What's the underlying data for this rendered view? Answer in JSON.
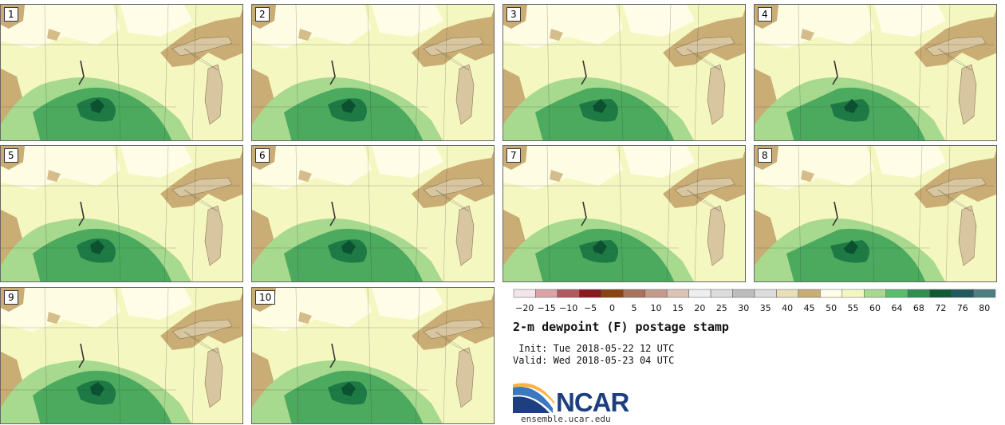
{
  "panels": [
    {
      "label": "1"
    },
    {
      "label": "2"
    },
    {
      "label": "3"
    },
    {
      "label": "4"
    },
    {
      "label": "5"
    },
    {
      "label": "6"
    },
    {
      "label": "7"
    },
    {
      "label": "8"
    },
    {
      "label": "9"
    },
    {
      "label": "10"
    }
  ],
  "colorbar": {
    "tick_labels": [
      "−20",
      "−15",
      "−10",
      "−5",
      "0",
      "5",
      "10",
      "15",
      "20",
      "25",
      "30",
      "35",
      "40",
      "45",
      "50",
      "55",
      "60",
      "64",
      "68",
      "72",
      "76",
      "80"
    ],
    "colors": [
      "#f2e6ea",
      "#d9a3a8",
      "#b05a5f",
      "#8a1a20",
      "#8a4410",
      "#a8735a",
      "#c39b8a",
      "#dcc3b6",
      "#eeeeee",
      "#dcdcdc",
      "#bdbdbd",
      "#dcdcdc",
      "#e8dfb8",
      "#c9ad74",
      "#fffde8",
      "#f5f7c0",
      "#a7d98f",
      "#5bbd6b",
      "#2f8f4f",
      "#0f5a34",
      "#1f5a60",
      "#4d7f80"
    ]
  },
  "title": "2-m dewpoint (F) postage stamp",
  "init_line": " Init: Tue 2018-05-22 12 UTC",
  "valid_line": "Valid: Wed 2018-05-23 04 UTC",
  "logo": {
    "text": "NCAR",
    "brand_color": "#1d3f80",
    "accent_color": "#3a78c0"
  },
  "website": "ensemble.ucar.edu",
  "map_colors": {
    "base": "#f5f7c0",
    "pale": "#fffde8",
    "brown": "#c9ad74",
    "light_green": "#a7d98f",
    "mid_green": "#4caa5f",
    "dark_green": "#1e7a45",
    "darkest_green": "#0b5230",
    "lake": "#d8c6a0",
    "border": "#333333"
  }
}
